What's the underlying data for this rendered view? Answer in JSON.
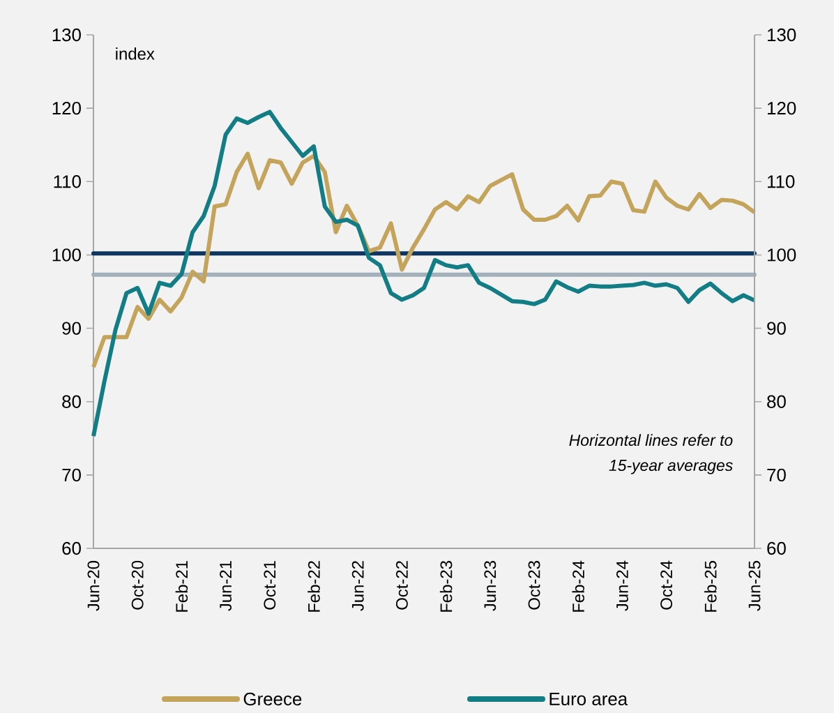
{
  "chart_data": {
    "type": "line",
    "ylabel": "index",
    "categories": [
      "Jun-20",
      null,
      null,
      null,
      "Oct-20",
      null,
      null,
      null,
      "Feb-21",
      null,
      null,
      null,
      "Jun-21",
      null,
      null,
      null,
      "Oct-21",
      null,
      null,
      null,
      "Feb-22",
      null,
      null,
      null,
      "Jun-22",
      null,
      null,
      null,
      "Oct-22",
      null,
      null,
      null,
      "Feb-23",
      null,
      null,
      null,
      "Jun-23",
      null,
      null,
      null,
      "Oct-23",
      null,
      null,
      null,
      "Feb-24",
      null,
      null,
      null,
      "Jun-24",
      null,
      null,
      null,
      "Oct-24",
      null,
      null,
      null,
      "Feb-25",
      null,
      null,
      null,
      "Jun-25"
    ],
    "series": [
      {
        "name": "Greece",
        "color": "#c4a35a",
        "values": [
          84.7,
          88.8,
          88.8,
          88.8,
          92.9,
          91.3,
          93.9,
          92.3,
          94.2,
          97.7,
          96.4,
          106.6,
          106.9,
          111.3,
          113.8,
          109.1,
          112.9,
          112.6,
          109.7,
          112.6,
          113.5,
          111.3,
          103.1,
          106.7,
          104.0,
          100.5,
          101.0,
          104.3,
          98.0,
          101.0,
          103.5,
          106.2,
          107.2,
          106.2,
          108.0,
          107.2,
          109.4,
          110.2,
          111.0,
          106.2,
          104.8,
          104.8,
          105.3,
          106.7,
          104.7,
          108.0,
          108.1,
          110.0,
          109.7,
          106.1,
          105.9,
          110.0,
          107.8,
          106.7,
          106.2,
          108.3,
          106.4,
          107.5,
          107.4,
          106.9,
          105.8
        ]
      },
      {
        "name": "Euro area",
        "color": "#137d85",
        "values": [
          75.3,
          82.8,
          89.8,
          94.8,
          95.5,
          92.0,
          96.2,
          95.8,
          97.4,
          103.1,
          105.3,
          109.4,
          116.4,
          118.6,
          118.0,
          118.8,
          119.5,
          117.3,
          115.4,
          113.5,
          114.8,
          106.6,
          104.5,
          104.8,
          104.0,
          99.6,
          98.6,
          94.8,
          93.9,
          94.5,
          95.5,
          99.3,
          98.6,
          98.3,
          98.6,
          96.2,
          95.5,
          94.6,
          93.7,
          93.6,
          93.3,
          93.9,
          96.4,
          95.6,
          95.0,
          95.8,
          95.7,
          95.7,
          95.8,
          95.9,
          96.2,
          95.8,
          96.0,
          95.5,
          93.6,
          95.2,
          96.1,
          94.8,
          93.7,
          94.5,
          93.8
        ]
      }
    ],
    "ylim": [
      60,
      130
    ],
    "yticks": [
      60,
      70,
      80,
      90,
      100,
      110,
      120,
      130
    ],
    "y2lim": [
      60,
      130
    ],
    "y2ticks": [
      60,
      70,
      80,
      90,
      100,
      110,
      120,
      130
    ],
    "ref_lines": [
      {
        "axis": "y",
        "value": 100.2,
        "color": "#0d3560"
      },
      {
        "axis": "y",
        "value": 97.3,
        "color": "#a3b1bc"
      }
    ],
    "annotations": [
      "*Horizontal lines refer to*",
      "*15-year averages*"
    ],
    "legend": "bottom",
    "grid": false,
    "marker": "none",
    "line_style": "solid"
  }
}
